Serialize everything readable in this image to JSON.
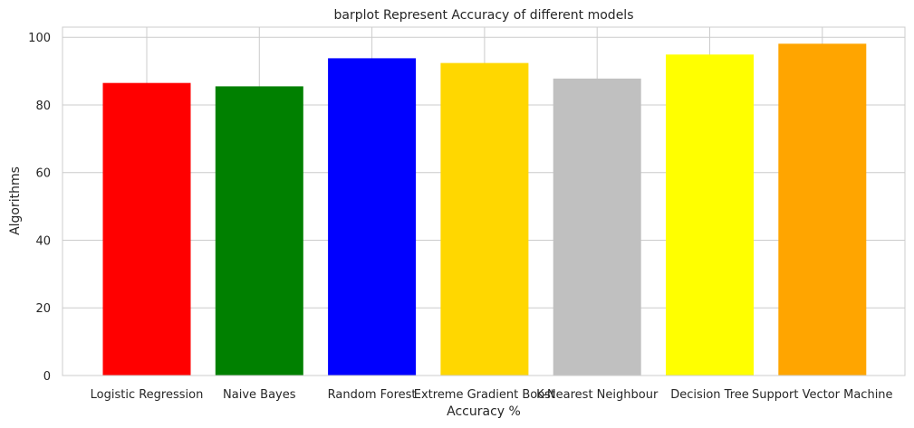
{
  "chart_data": {
    "type": "bar",
    "title": "barplot Represent Accuracy of different models",
    "xlabel": "Accuracy %",
    "ylabel": "Algorithms",
    "categories": [
      "Logistic Regression",
      "Naive Bayes",
      "Random Forest",
      "Extreme Gradient Boost",
      "K-Nearest Neighbour",
      "Decision Tree",
      "Support Vector Machine"
    ],
    "values": [
      86.5,
      85.5,
      93.8,
      92.4,
      87.8,
      94.9,
      98.1
    ],
    "colors": [
      "#ff0000",
      "#008000",
      "#0000ff",
      "#ffd700",
      "#c0c0c0",
      "#ffff00",
      "#ffa500"
    ],
    "yticks": [
      0,
      20,
      40,
      60,
      80,
      100
    ],
    "ylim": [
      0,
      103
    ],
    "grid": true
  }
}
